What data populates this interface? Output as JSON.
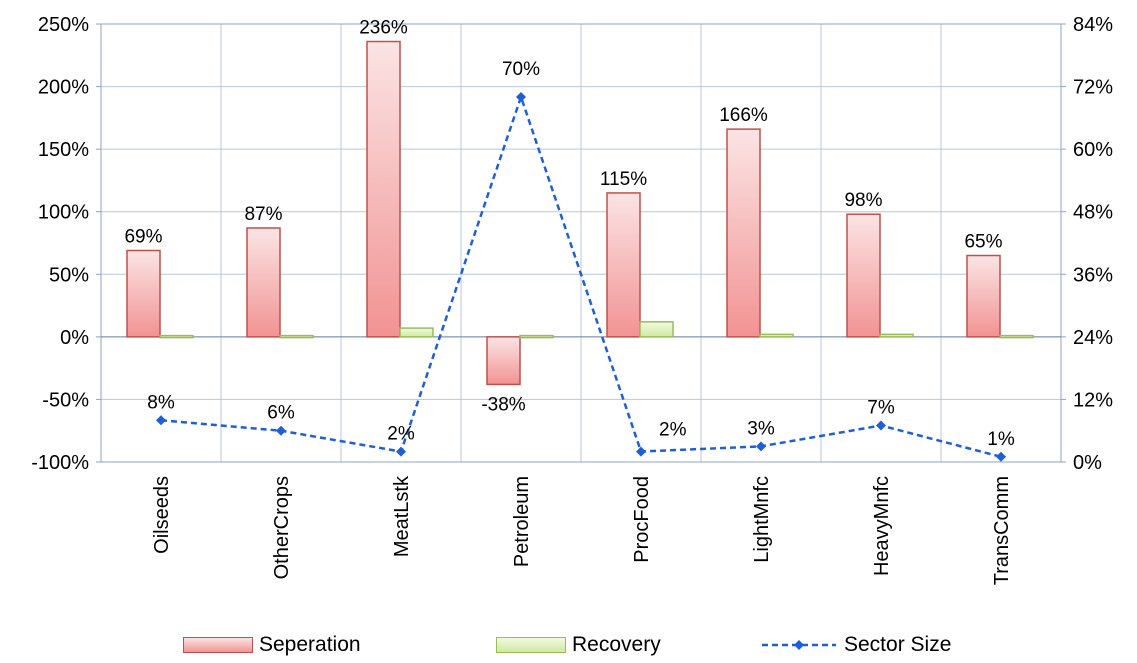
{
  "chart_data": {
    "type": "bar",
    "categories": [
      "Oilseeds",
      "OtherCrops",
      "MeatLstk",
      "Petroleum",
      "ProcFood",
      "LightMnfc",
      "HeavyMnfc",
      "TransComm"
    ],
    "series": [
      {
        "name": "Seperation",
        "kind": "bar",
        "axis": "left",
        "color_fill_top": "#f8d9d9",
        "color_fill_bottom": "#f49a9a",
        "color_stroke": "#c0504d",
        "values": [
          69,
          87,
          236,
          -38,
          115,
          166,
          98,
          65
        ],
        "labels": [
          "69%",
          "87%",
          "236%",
          "-38%",
          "115%",
          "166%",
          "98%",
          "65%"
        ]
      },
      {
        "name": "Recovery",
        "kind": "bar",
        "axis": "left",
        "color_fill_top": "#eef8d8",
        "color_fill_bottom": "#d3ecaa",
        "color_stroke": "#9bbb59",
        "values": [
          1,
          1,
          7,
          1,
          12,
          2,
          2,
          1
        ]
      },
      {
        "name": "Sector Size",
        "kind": "line",
        "axis": "right",
        "color": "#1f5fd6",
        "values": [
          8,
          6,
          2,
          70,
          2,
          3,
          7,
          1
        ],
        "labels": [
          "8%",
          "6%",
          "2%",
          "70%",
          "2%",
          "3%",
          "7%",
          "1%"
        ]
      }
    ],
    "left_axis": {
      "min": -100,
      "max": 250,
      "step": 50,
      "ticks": [
        "-100%",
        "-50%",
        "0%",
        "50%",
        "100%",
        "150%",
        "200%",
        "250%"
      ]
    },
    "right_axis": {
      "min": 0,
      "max": 84,
      "step": 12,
      "ticks": [
        "0%",
        "12%",
        "24%",
        "36%",
        "48%",
        "60%",
        "72%",
        "84%"
      ]
    },
    "grid": true,
    "legend": "bottom"
  }
}
